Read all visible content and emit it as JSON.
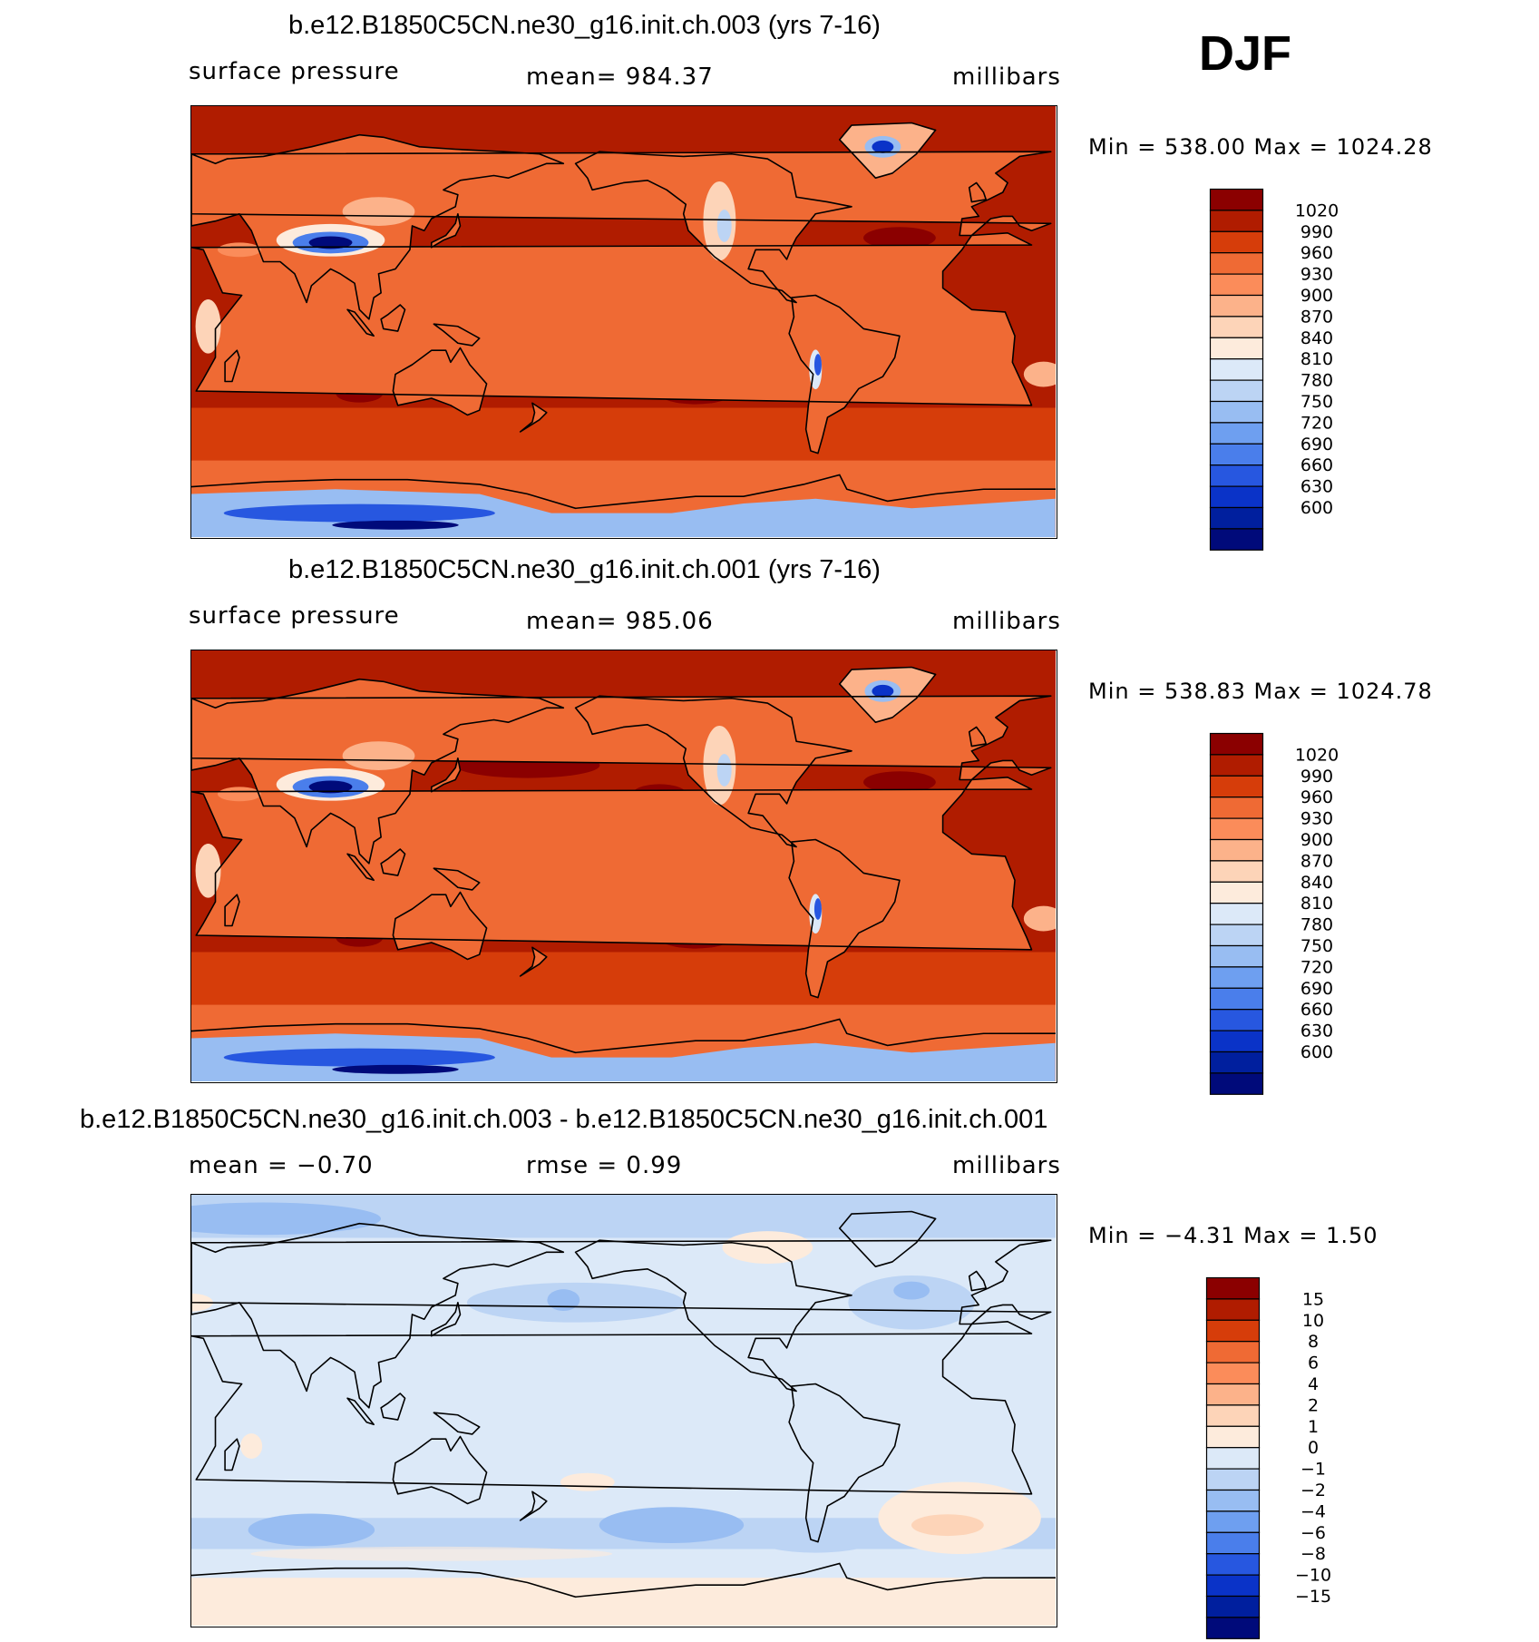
{
  "season": "DJF",
  "panels": [
    {
      "id": "case1",
      "title": "b.e12.B1850C5CN.ne30_g16.init.ch.003 (yrs 7-16)",
      "left_label": "surface pressure",
      "center_label": "mean=  984.37",
      "right_label": "millibars",
      "minmax": "Min  =  538.00  Max  =  1024.28",
      "palette": "sp"
    },
    {
      "id": "case2",
      "title": "b.e12.B1850C5CN.ne30_g16.init.ch.001 (yrs 7-16)",
      "left_label": "surface pressure",
      "center_label": "mean=  985.06",
      "right_label": "millibars",
      "minmax": "Min  =  538.83  Max  =  1024.78",
      "palette": "sp"
    },
    {
      "id": "diff",
      "title": "b.e12.B1850C5CN.ne30_g16.init.ch.003 - b.e12.B1850C5CN.ne30_g16.init.ch.001",
      "left_label": "mean  =   −0.70",
      "center_label": "rmse  =      0.99",
      "right_label": "millibars",
      "minmax": "Min  =    −4.31  Max  =      1.50",
      "palette": "diff"
    }
  ],
  "chart_data": [
    {
      "type": "heatmap",
      "title": "b.e12.B1850C5CN.ne30_g16.init.ch.003 (yrs 7-16)",
      "variable": "surface pressure",
      "units": "millibars",
      "mean": 984.37,
      "min": 538.0,
      "max": 1024.28,
      "colorbar_levels": [
        1020,
        990,
        960,
        930,
        900,
        870,
        840,
        810,
        780,
        750,
        720,
        690,
        660,
        630,
        600
      ],
      "colorbar_colors": [
        "#8b0000",
        "#b01c00",
        "#d63d0a",
        "#ef6a34",
        "#fb8c5a",
        "#fcb28a",
        "#fdd4b8",
        "#fdebdc",
        "#dce9f8",
        "#bcd4f4",
        "#98bdf2",
        "#6e9ff0",
        "#4a7eeb",
        "#2757e0",
        "#0a33c8",
        "#001f9e",
        "#000a7a"
      ]
    },
    {
      "type": "heatmap",
      "title": "b.e12.B1850C5CN.ne30_g16.init.ch.001 (yrs 7-16)",
      "variable": "surface pressure",
      "units": "millibars",
      "mean": 985.06,
      "min": 538.83,
      "max": 1024.78,
      "colorbar_levels": [
        1020,
        990,
        960,
        930,
        900,
        870,
        840,
        810,
        780,
        750,
        720,
        690,
        660,
        630,
        600
      ],
      "colorbar_colors": [
        "#8b0000",
        "#b01c00",
        "#d63d0a",
        "#ef6a34",
        "#fb8c5a",
        "#fcb28a",
        "#fdd4b8",
        "#fdebdc",
        "#dce9f8",
        "#bcd4f4",
        "#98bdf2",
        "#6e9ff0",
        "#4a7eeb",
        "#2757e0",
        "#0a33c8",
        "#001f9e",
        "#000a7a"
      ]
    },
    {
      "type": "heatmap",
      "title": "b.e12.B1850C5CN.ne30_g16.init.ch.003 - b.e12.B1850C5CN.ne30_g16.init.ch.001",
      "units": "millibars",
      "mean": -0.7,
      "rmse": 0.99,
      "min": -4.31,
      "max": 1.5,
      "colorbar_levels": [
        "15",
        "10",
        "8",
        "6",
        "4",
        "2",
        "1",
        "0",
        "−1",
        "−2",
        "−4",
        "−6",
        "−8",
        "−10",
        "−15"
      ],
      "colorbar_colors": [
        "#8b0000",
        "#b01c00",
        "#d63d0a",
        "#ef6a34",
        "#fb8c5a",
        "#fcb28a",
        "#fdd4b8",
        "#fdebdc",
        "#dce9f8",
        "#bcd4f4",
        "#98bdf2",
        "#6e9ff0",
        "#4a7eeb",
        "#2757e0",
        "#0a33c8",
        "#001f9e",
        "#000a7a"
      ]
    }
  ]
}
